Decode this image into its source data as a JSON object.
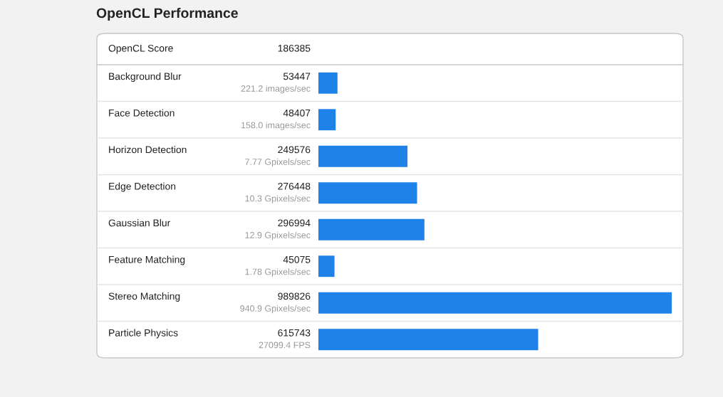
{
  "chart_data": {
    "type": "bar",
    "orientation": "horizontal",
    "title": "OpenCL Performance",
    "categories": [
      "Background Blur",
      "Face Detection",
      "Horizon Detection",
      "Edge Detection",
      "Gaussian Blur",
      "Feature Matching",
      "Stereo Matching",
      "Particle Physics"
    ],
    "values": [
      53447,
      48407,
      249576,
      276448,
      296994,
      45075,
      989826,
      615743
    ],
    "color": "#1e82e9",
    "xlim": [
      0,
      989826
    ],
    "data_labels": true,
    "grid": false,
    "legend": false,
    "tick_labels": false,
    "annotations": [
      "OpenCL Score",
      "186385",
      "221.2 images/sec",
      "158.0 images/sec",
      "7.77 Gpixels/sec",
      "10.3 Gpixels/sec",
      "12.9 Gpixels/sec",
      "1.78 Gpixels/sec",
      "940.9 Gpixels/sec",
      "27099.4 FPS"
    ]
  }
}
